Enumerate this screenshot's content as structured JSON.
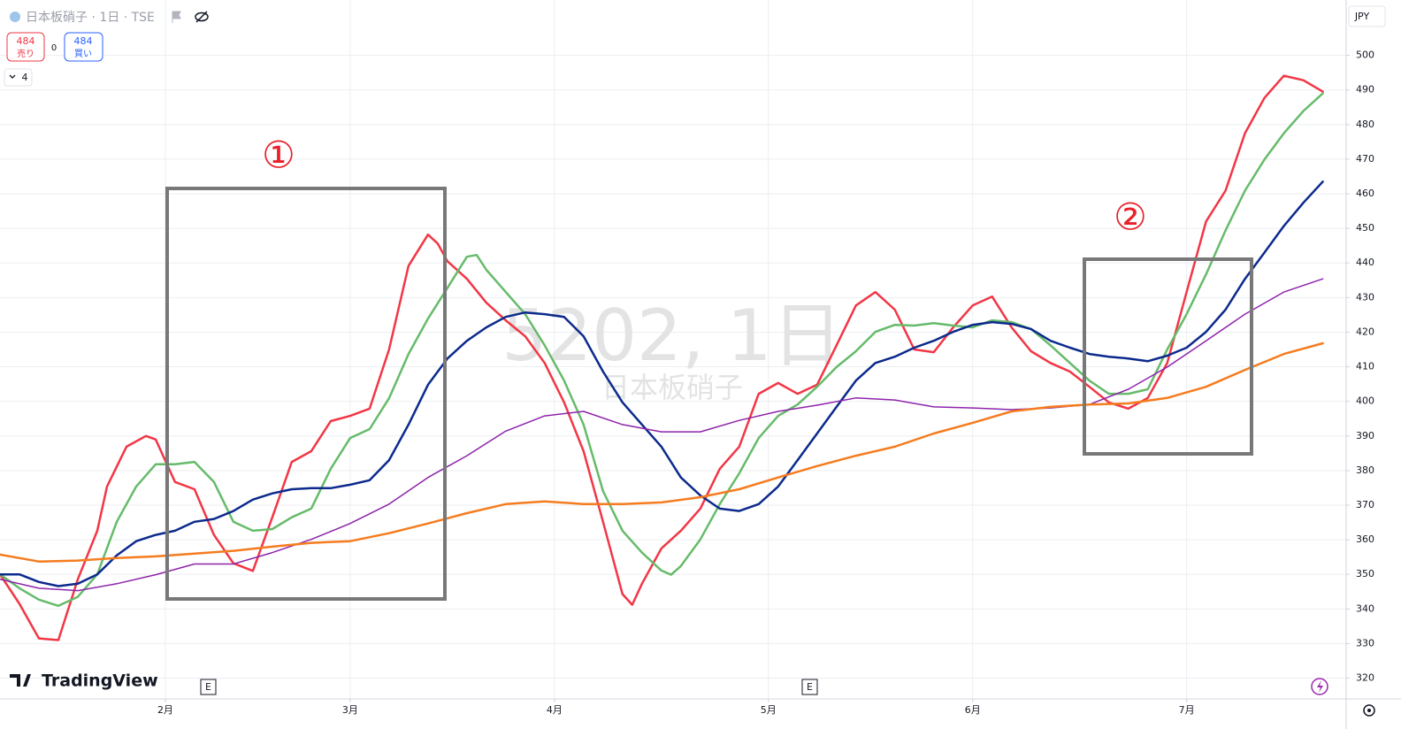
{
  "chart_data": {
    "type": "line",
    "title": "日本板硝子 · 1日 · TSE",
    "watermark": "5202, 1日",
    "watermark_subtitle": "日本板硝子",
    "currency": "JPY",
    "brand": "TradingView",
    "sell": {
      "price": 484,
      "label": "売り"
    },
    "spread": 0,
    "buy": {
      "price": 484,
      "label": "買い"
    },
    "indicator_count": 4,
    "annotations": [
      "①",
      "②"
    ],
    "events": [
      "E",
      "E"
    ],
    "grid": true,
    "xlim": [
      0,
      138.4
    ],
    "ylim": [
      314,
      516
    ],
    "xticks": [
      {
        "value": 17,
        "label": "2月"
      },
      {
        "value": 36,
        "label": "3月"
      },
      {
        "value": 57,
        "label": "4月"
      },
      {
        "value": 79,
        "label": "5月"
      },
      {
        "value": 100,
        "label": "6月"
      },
      {
        "value": 122,
        "label": "7月"
      }
    ],
    "yticks": [
      320,
      330,
      340,
      350,
      360,
      370,
      380,
      390,
      400,
      410,
      420,
      430,
      440,
      450,
      460,
      470,
      480,
      490,
      500
    ],
    "series": [
      {
        "color": "#f23645",
        "width": 2.5,
        "x": [
          0,
          2,
          4,
          6,
          8,
          10,
          11,
          13,
          15,
          16,
          18,
          20,
          22,
          24,
          26,
          28,
          30,
          32,
          34,
          36,
          38,
          40,
          42,
          44,
          45,
          46,
          48,
          50,
          52,
          54,
          56,
          58,
          60,
          62,
          64,
          65,
          66,
          68,
          70,
          72,
          74,
          76,
          78,
          80,
          82,
          84,
          86,
          88,
          90,
          92,
          94,
          96,
          98,
          100,
          102,
          104,
          106,
          108,
          110,
          112,
          114,
          116,
          118,
          120,
          122,
          124,
          126,
          128,
          130,
          132,
          134,
          136
        ],
        "values": [
          350,
          341.5,
          331.5,
          331,
          348.6,
          362.6,
          375.4,
          386.9,
          390,
          389,
          376.7,
          374.6,
          361.4,
          353.2,
          351,
          366.5,
          382.5,
          385.6,
          394.3,
          395.8,
          397.9,
          415,
          439.2,
          448.2,
          445.6,
          440.5,
          435.4,
          428.5,
          423.4,
          418.8,
          411.1,
          399.7,
          385.6,
          365.2,
          344.3,
          341.2,
          347.3,
          357.5,
          362.6,
          369,
          380.5,
          386.9,
          402.2,
          405.3,
          402.2,
          404.8,
          416.2,
          427.7,
          431.6,
          426.5,
          415,
          414.2,
          421.4,
          427.7,
          430.3,
          421.4,
          414.5,
          411.1,
          408.6,
          404.2,
          399.7,
          397.9,
          401,
          411.1,
          431.6,
          452,
          460.9,
          477.5,
          487.7,
          494.1,
          492.8,
          489.5
        ]
      },
      {
        "color": "#66bb6a",
        "width": 2.5,
        "x": [
          0,
          2,
          4,
          6,
          8,
          10,
          12,
          14,
          16,
          18,
          20,
          22,
          24,
          26,
          28,
          30,
          32,
          34,
          36,
          38,
          40,
          42,
          44,
          46,
          48,
          49,
          50,
          52,
          54,
          56,
          58,
          60,
          62,
          64,
          66,
          68,
          69,
          70,
          72,
          74,
          76,
          78,
          80,
          82,
          84,
          86,
          88,
          90,
          92,
          94,
          96,
          98,
          100,
          102,
          104,
          106,
          108,
          110,
          112,
          114,
          116,
          118,
          120,
          122,
          124,
          126,
          128,
          130,
          132,
          134,
          136
        ],
        "values": [
          350,
          346,
          342.7,
          340.9,
          343.5,
          350,
          365.2,
          375.4,
          381.8,
          381.8,
          382.5,
          376.7,
          365.2,
          362.6,
          363.1,
          366.5,
          369,
          380.5,
          389.4,
          392,
          400.9,
          413.7,
          423.9,
          432.8,
          441.8,
          442.3,
          438,
          431.6,
          425.2,
          416.2,
          406,
          393.3,
          374.1,
          362.6,
          356.3,
          351.1,
          349.9,
          352.4,
          360.1,
          370.3,
          379.2,
          389.4,
          395.8,
          399.1,
          404.2,
          409.9,
          414.5,
          420.1,
          422.1,
          421.9,
          422.6,
          421.9,
          421.4,
          423.4,
          422.9,
          420.9,
          416.2,
          411.1,
          406,
          402.2,
          402.2,
          403.5,
          415,
          425.2,
          436.7,
          449.4,
          460.9,
          469.9,
          477.5,
          483.9,
          489
        ]
      },
      {
        "color": "#0c2a8c",
        "width": 2.5,
        "x": [
          0,
          2,
          4,
          6,
          8,
          10,
          12,
          14,
          16,
          18,
          20,
          22,
          24,
          26,
          28,
          30,
          32,
          34,
          36,
          38,
          40,
          42,
          44,
          46,
          48,
          50,
          52,
          54,
          56,
          58,
          60,
          62,
          64,
          66,
          68,
          70,
          72,
          74,
          76,
          78,
          80,
          82,
          84,
          86,
          88,
          90,
          92,
          94,
          96,
          98,
          100,
          102,
          104,
          106,
          108,
          110,
          112,
          114,
          116,
          118,
          120,
          122,
          124,
          126,
          128,
          130,
          132,
          134,
          136
        ],
        "values": [
          350,
          350,
          347.8,
          346.6,
          347.3,
          350,
          355.5,
          359.6,
          361.4,
          362.6,
          365.2,
          366,
          368.3,
          371.6,
          373.4,
          374.6,
          374.9,
          374.9,
          375.9,
          377.2,
          383,
          393.3,
          404.8,
          412.4,
          417.5,
          421.4,
          424.4,
          425.7,
          425.2,
          424.4,
          418.8,
          408.6,
          399.7,
          393.3,
          386.9,
          378,
          372.8,
          369,
          368.3,
          370.3,
          375.4,
          383,
          390.7,
          398.4,
          406,
          411.1,
          412.9,
          415.5,
          417.5,
          420.1,
          422.1,
          422.9,
          422.4,
          420.9,
          417.5,
          415.5,
          413.7,
          412.9,
          412.4,
          411.6,
          413.2,
          415.5,
          420.1,
          426.5,
          435.4,
          443,
          450.7,
          457.4,
          463.5
        ]
      },
      {
        "color": "#8e24aa",
        "width": 1.5,
        "x": [
          0,
          4,
          8,
          12,
          16,
          20,
          24,
          28,
          32,
          36,
          40,
          44,
          48,
          52,
          56,
          60,
          64,
          68,
          72,
          76,
          80,
          84,
          88,
          92,
          96,
          100,
          104,
          108,
          112,
          116,
          120,
          124,
          128,
          132,
          136
        ],
        "values": [
          348.6,
          346,
          345.3,
          347.3,
          349.9,
          353,
          353,
          356.3,
          360.1,
          364.7,
          370.3,
          378,
          384.3,
          391.4,
          395.8,
          397.1,
          393.3,
          391.2,
          391.2,
          394.5,
          397.1,
          398.9,
          401,
          400.4,
          398.4,
          398.1,
          397.6,
          398.1,
          399.1,
          403.5,
          409.9,
          417.5,
          425.2,
          431.6,
          435.4
        ]
      },
      {
        "color": "#f57c1f",
        "width": 2.5,
        "x": [
          0,
          4,
          8,
          12,
          16,
          20,
          24,
          28,
          32,
          36,
          40,
          44,
          48,
          52,
          56,
          60,
          64,
          68,
          72,
          76,
          80,
          84,
          88,
          92,
          96,
          100,
          104,
          108,
          112,
          116,
          120,
          124,
          128,
          132,
          136
        ],
        "values": [
          355.7,
          353.7,
          354,
          354.7,
          355.2,
          356,
          356.8,
          358,
          359.1,
          359.6,
          361.9,
          364.7,
          367.7,
          370.3,
          371.1,
          370.3,
          370.3,
          370.8,
          372.3,
          374.6,
          378,
          381.3,
          384.3,
          386.9,
          390.7,
          393.8,
          397.1,
          398.4,
          399.1,
          399.4,
          401,
          404.2,
          409.1,
          413.7,
          416.8
        ]
      }
    ]
  }
}
